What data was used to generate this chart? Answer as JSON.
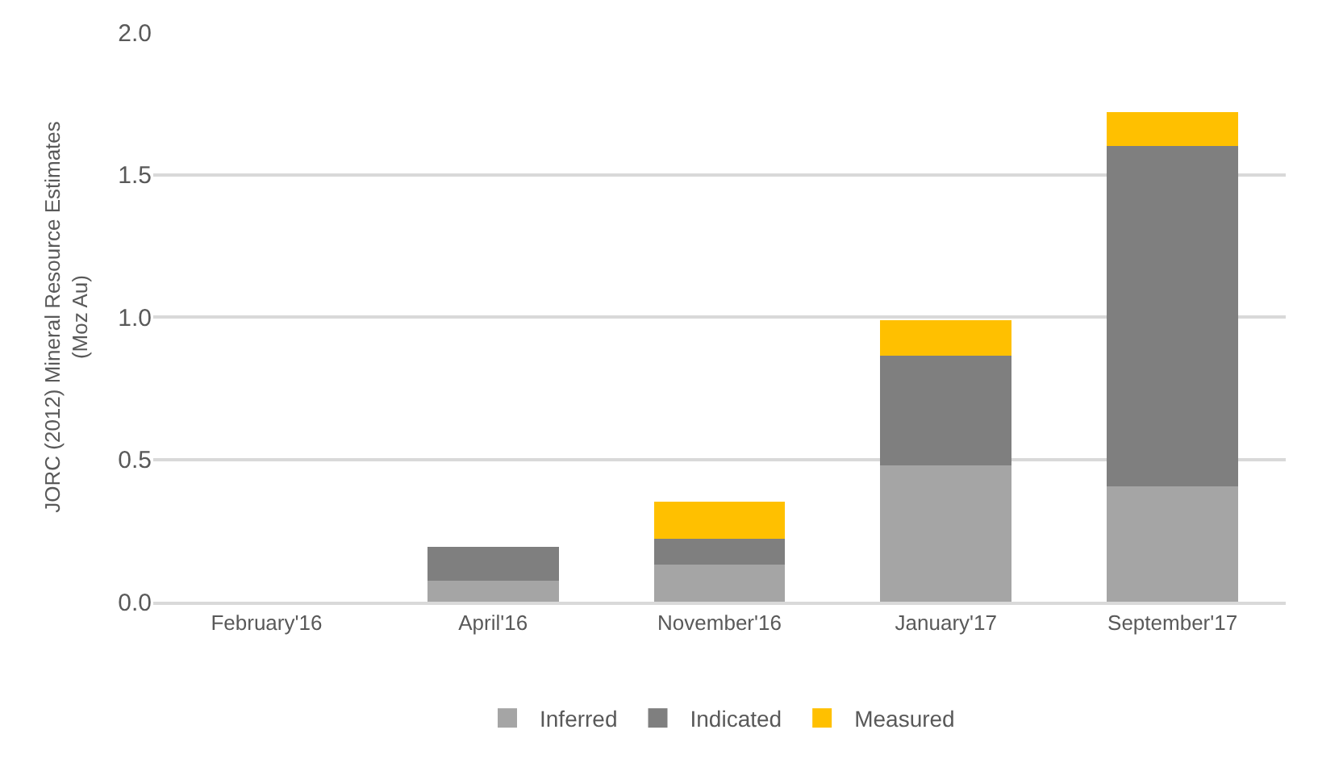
{
  "chart_data": {
    "type": "bar",
    "stacked": true,
    "ylabel": "JORC (2012) Mineral Resource Estimates\n(Moz Au)",
    "categories": [
      "February'16",
      "April'16",
      "November'16",
      "January'17",
      "September'17"
    ],
    "series": [
      {
        "name": "Inferred",
        "color": "#a5a5a5",
        "values": [
          0,
          0.073,
          0.13,
          0.48,
          0.405
        ]
      },
      {
        "name": "Indicated",
        "color": "#7f7f7f",
        "values": [
          0,
          0.12,
          0.09,
          0.385,
          1.195
        ]
      },
      {
        "name": "Measured",
        "color": "#ffc000",
        "values": [
          0,
          0,
          0.13,
          0.125,
          0.12
        ]
      }
    ],
    "ylim": [
      0,
      2.0
    ],
    "yticks": [
      {
        "value": 0,
        "label": "0.0"
      },
      {
        "value": 0.5,
        "label": "0.5"
      },
      {
        "value": 1.0,
        "label": "1.0"
      },
      {
        "value": 1.5,
        "label": "1.5"
      },
      {
        "value": 2.0,
        "label": "2.0"
      }
    ],
    "grid": "y",
    "legend": "bottom"
  }
}
